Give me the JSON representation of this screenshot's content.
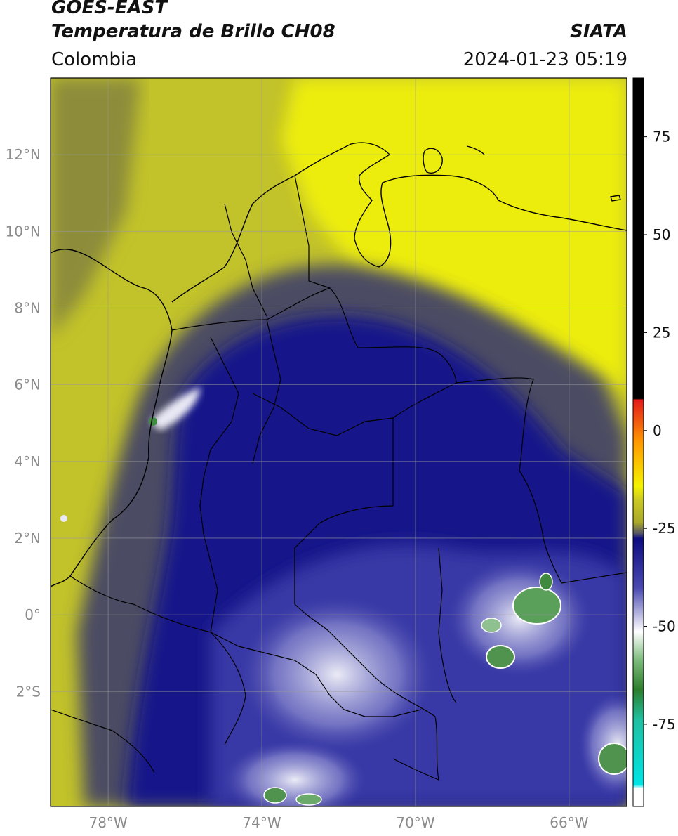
{
  "header": {
    "satellite": "GOES-EAST",
    "product": "Temperatura de Brillo CH08",
    "region": "Colombia",
    "org": "SIATA",
    "datetime": "2024-01-23 05:19"
  },
  "map": {
    "lon_range": [
      -79.5,
      -64.5
    ],
    "lat_range": [
      -5.0,
      14.0
    ],
    "lon_ticks": [
      {
        "v": -78,
        "label": "78°W"
      },
      {
        "v": -74,
        "label": "74°W"
      },
      {
        "v": -70,
        "label": "70°W"
      },
      {
        "v": -66,
        "label": "66°W"
      }
    ],
    "lat_ticks": [
      {
        "v": 12,
        "label": "12°N"
      },
      {
        "v": 10,
        "label": "10°N"
      },
      {
        "v": 8,
        "label": "8°N"
      },
      {
        "v": 6,
        "label": "6°N"
      },
      {
        "v": 4,
        "label": "4°N"
      },
      {
        "v": 2,
        "label": "2°N"
      },
      {
        "v": 0,
        "label": "0°"
      },
      {
        "v": -2,
        "label": "2°S"
      }
    ],
    "grid": true
  },
  "colorbar": {
    "range": [
      -96,
      90
    ],
    "ticks": [
      {
        "v": 75,
        "label": "75"
      },
      {
        "v": 50,
        "label": "50"
      },
      {
        "v": 25,
        "label": "25"
      },
      {
        "v": 0,
        "label": "0"
      },
      {
        "v": -25,
        "label": "-25"
      },
      {
        "v": -50,
        "label": "-50"
      },
      {
        "v": -75,
        "label": "-75"
      }
    ],
    "colors": {
      "black": "#000000",
      "red": "#e31a1c",
      "orange": "#ff9900",
      "yellow": "#f4f300",
      "olive": "#a9a92a",
      "gray": "#555566",
      "navy": "#0d0d80",
      "blue": "#4a4ab0",
      "white": "#ffffff",
      "green": "#2e7d2e",
      "teal": "#1fbf9f",
      "cyan": "#00e5e5"
    }
  }
}
